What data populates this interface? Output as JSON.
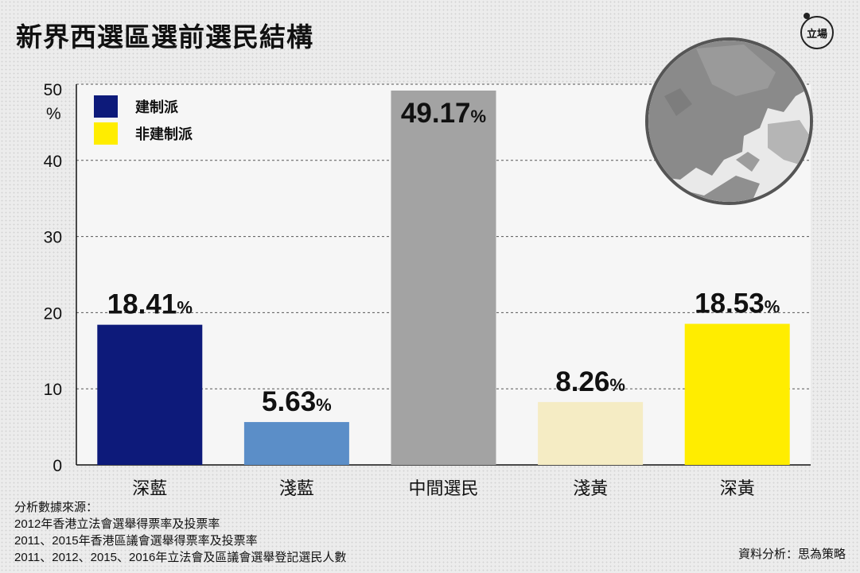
{
  "header": {
    "title": "新界西選區選前選民結構",
    "logo_text": "立場"
  },
  "chart_data": {
    "type": "bar",
    "title": "新界西選區選前選民結構",
    "categories": [
      "深藍",
      "淺藍",
      "中間選民",
      "淺黃",
      "深黃"
    ],
    "values": [
      18.41,
      5.63,
      49.17,
      8.26,
      18.53
    ],
    "value_labels": [
      "18.41",
      "5.63",
      "49.17",
      "8.26",
      "18.53"
    ],
    "value_suffix": "%",
    "bar_colors": [
      "#0d1a7a",
      "#5b8ec8",
      "#a3a3a3",
      "#f5ecc4",
      "#ffed00"
    ],
    "ylim": [
      0,
      50
    ],
    "yticks": [
      0,
      10,
      20,
      30,
      40,
      50
    ],
    "ylabel": "%",
    "xlabel": "",
    "grid": true,
    "legend_position": "top-left",
    "legend": [
      {
        "label": "建制派",
        "color": "#0d1a7a"
      },
      {
        "label": "非建制派",
        "color": "#ffed00"
      }
    ]
  },
  "footer": {
    "source_lines": [
      "分析數據來源：",
      "2012年香港立法會選舉得票率及投票率",
      "2011、2015年香港區議會選舉得票率及投票率",
      "2011、2012、2015、2016年立法會及區議會選舉登記選民人數"
    ],
    "credit": "資料分析：思為策略"
  },
  "colors": {
    "background": "#ececec",
    "plot_background": "#f6f6f6",
    "text": "#111111"
  }
}
